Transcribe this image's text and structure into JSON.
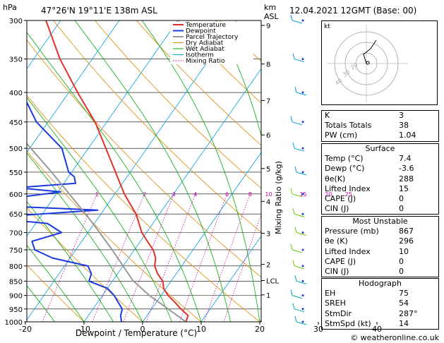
{
  "header": {
    "hpa_label": "hPa",
    "location": "47°26'N  19°11'E  138m  ASL",
    "km_label": "km",
    "asl_label": "ASL",
    "datetime": "12.04.2021  12GMT  (Base: 00)"
  },
  "colors": {
    "temperature": "#e0302a",
    "dewpoint": "#1a3ae0",
    "parcel": "#999999",
    "dry_adiabat": "#e08a00",
    "wet_adiabat": "#00aa00",
    "isotherm": "#00a0e0",
    "mixing_ratio": "#cc00aa"
  },
  "chart_data": {
    "type": "line",
    "xlabel": "Dewpoint / Temperature (°C)",
    "ylabel": "hPa",
    "right_axis_label": "Mixing Ratio (g/kg)",
    "x_ticks": [
      -30,
      -20,
      -10,
      0,
      10,
      20,
      30,
      40
    ],
    "pressure_levels": [
      300,
      350,
      400,
      450,
      500,
      550,
      600,
      650,
      700,
      750,
      800,
      850,
      900,
      950,
      1000
    ],
    "km_ticks": [
      {
        "km": "9",
        "p": 306
      },
      {
        "km": "8",
        "p": 357
      },
      {
        "km": "7",
        "p": 413
      },
      {
        "km": "6",
        "p": 474
      },
      {
        "km": "5",
        "p": 542
      },
      {
        "km": "4",
        "p": 618
      },
      {
        "km": "3",
        "p": 702
      },
      {
        "km": "2",
        "p": 795
      },
      {
        "km": "LCL",
        "p": 848
      },
      {
        "km": "1",
        "p": 898
      }
    ],
    "mixing_ratio_labels": [
      {
        "label": "1",
        "w": 1
      },
      {
        "label": "2",
        "w": 2
      },
      {
        "label": "3",
        "w": 3
      },
      {
        "label": "4",
        "w": 4
      },
      {
        "label": "6",
        "w": 6
      },
      {
        "label": "8",
        "w": 8
      },
      {
        "label": "10",
        "w": 10
      },
      {
        "label": "15",
        "w": 15
      },
      {
        "label": "20",
        "w": 20
      },
      {
        "label": "25",
        "w": 25
      }
    ],
    "legend": [
      "Temperature",
      "Dewpoint",
      "Parcel Trajectory",
      "Dry Adiabat",
      "Wet Adiabat",
      "Isotherm",
      "Mixing Ratio"
    ],
    "series": [
      {
        "name": "Temperature",
        "points": [
          [
            1000,
            7.4
          ],
          [
            975,
            7.0
          ],
          [
            950,
            5.0
          ],
          [
            925,
            3.2
          ],
          [
            900,
            1.2
          ],
          [
            875,
            -0.4
          ],
          [
            850,
            -1.4
          ],
          [
            825,
            -3.2
          ],
          [
            800,
            -4.6
          ],
          [
            775,
            -5.4
          ],
          [
            750,
            -6.8
          ],
          [
            725,
            -8.8
          ],
          [
            700,
            -10.8
          ],
          [
            650,
            -14.0
          ],
          [
            600,
            -18.4
          ],
          [
            550,
            -22.5
          ],
          [
            500,
            -27.0
          ],
          [
            450,
            -32.0
          ],
          [
            400,
            -38.5
          ],
          [
            350,
            -45.5
          ],
          [
            300,
            -52.5
          ]
        ]
      },
      {
        "name": "Dewpoint",
        "points": [
          [
            1000,
            -3.6
          ],
          [
            975,
            -4.5
          ],
          [
            950,
            -5.0
          ],
          [
            925,
            -6.5
          ],
          [
            900,
            -8.0
          ],
          [
            875,
            -10.0
          ],
          [
            850,
            -14.0
          ],
          [
            825,
            -14.5
          ],
          [
            800,
            -16.0
          ],
          [
            775,
            -23.0
          ],
          [
            750,
            -27.0
          ],
          [
            725,
            -28.5
          ],
          [
            700,
            -24.5
          ],
          [
            675,
            -28.0
          ],
          [
            660,
            -39.0
          ],
          [
            640,
            -21.0
          ],
          [
            630,
            -37.0
          ],
          [
            610,
            -37.0
          ],
          [
            595,
            -29.5
          ],
          [
            585,
            -37.5
          ],
          [
            575,
            -28.0
          ],
          [
            560,
            -29.0
          ],
          [
            550,
            -30.5
          ],
          [
            500,
            -34.5
          ],
          [
            450,
            -42.0
          ],
          [
            400,
            -48.0
          ],
          [
            350,
            -55.0
          ],
          [
            320,
            -60.0
          ],
          [
            300,
            -62.0
          ]
        ]
      },
      {
        "name": "Parcel Trajectory",
        "points": [
          [
            1000,
            7.4
          ],
          [
            900,
            -2.0
          ],
          [
            848,
            -6.6
          ],
          [
            800,
            -10.0
          ],
          [
            750,
            -13.8
          ],
          [
            700,
            -18.0
          ],
          [
            650,
            -22.6
          ],
          [
            600,
            -27.8
          ],
          [
            550,
            -33.4
          ],
          [
            500,
            -39.8
          ],
          [
            450,
            -46.8
          ],
          [
            400,
            -54.6
          ],
          [
            350,
            -63.0
          ],
          [
            300,
            -72.0
          ]
        ]
      }
    ],
    "wind_barbs": [
      300,
      350,
      400,
      450,
      500,
      550,
      600,
      650,
      700,
      750,
      800,
      850,
      900,
      950,
      1000
    ]
  },
  "hodograph": {
    "unit": "kt",
    "rings": [
      "20",
      "30",
      "40"
    ]
  },
  "indices": [
    {
      "label": "K",
      "value": "3"
    },
    {
      "label": "Totals Totals",
      "value": "38"
    },
    {
      "label": "PW (cm)",
      "value": "1.04"
    }
  ],
  "surface": {
    "title": "Surface",
    "rows": [
      {
        "label": "Temp (°C)",
        "value": "7.4"
      },
      {
        "label": "Dewp (°C)",
        "value": "-3.6"
      },
      {
        "label": "θe(K)",
        "value": "288"
      },
      {
        "label": "Lifted Index",
        "value": "15"
      },
      {
        "label": "CAPE (J)",
        "value": "0"
      },
      {
        "label": "CIN (J)",
        "value": "0"
      }
    ]
  },
  "most_unstable": {
    "title": "Most Unstable",
    "rows": [
      {
        "label": "Pressure (mb)",
        "value": "867"
      },
      {
        "label": "θe (K)",
        "value": "296"
      },
      {
        "label": "Lifted Index",
        "value": "10"
      },
      {
        "label": "CAPE (J)",
        "value": "0"
      },
      {
        "label": "CIN (J)",
        "value": "0"
      }
    ]
  },
  "hodograph_table": {
    "title": "Hodograph",
    "rows": [
      {
        "label": "EH",
        "value": "75"
      },
      {
        "label": "SREH",
        "value": "54"
      },
      {
        "label": "StmDir",
        "value": "287°"
      },
      {
        "label": "StmSpd (kt)",
        "value": "14"
      }
    ]
  },
  "footer": {
    "copyright": "© weatheronline.co.uk"
  }
}
